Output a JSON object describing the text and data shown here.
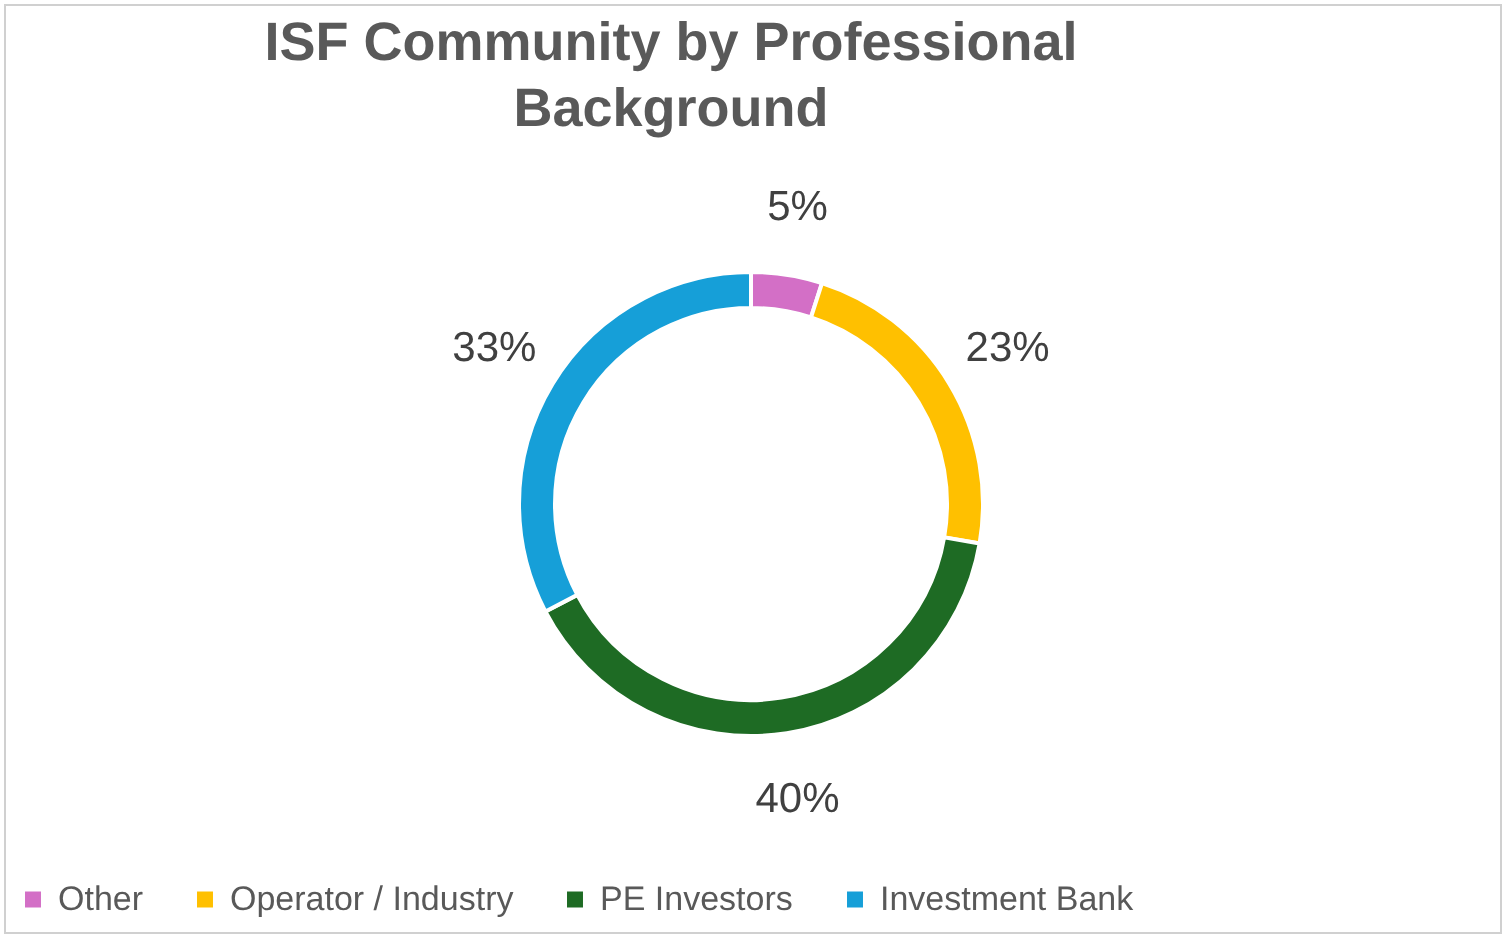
{
  "chart_data": {
    "type": "donut",
    "title": "ISF Community by Professional Background",
    "categories": [
      "Other",
      "Operator / Industry",
      "PE Investors",
      "Investment Bank"
    ],
    "values": [
      5,
      23,
      40,
      33
    ],
    "colors": [
      "#d36fc6",
      "#ffc000",
      "#1e6b24",
      "#169fd8"
    ],
    "value_labels": [
      "5%",
      "23%",
      "40%",
      "33%"
    ],
    "legend": "bottom"
  }
}
